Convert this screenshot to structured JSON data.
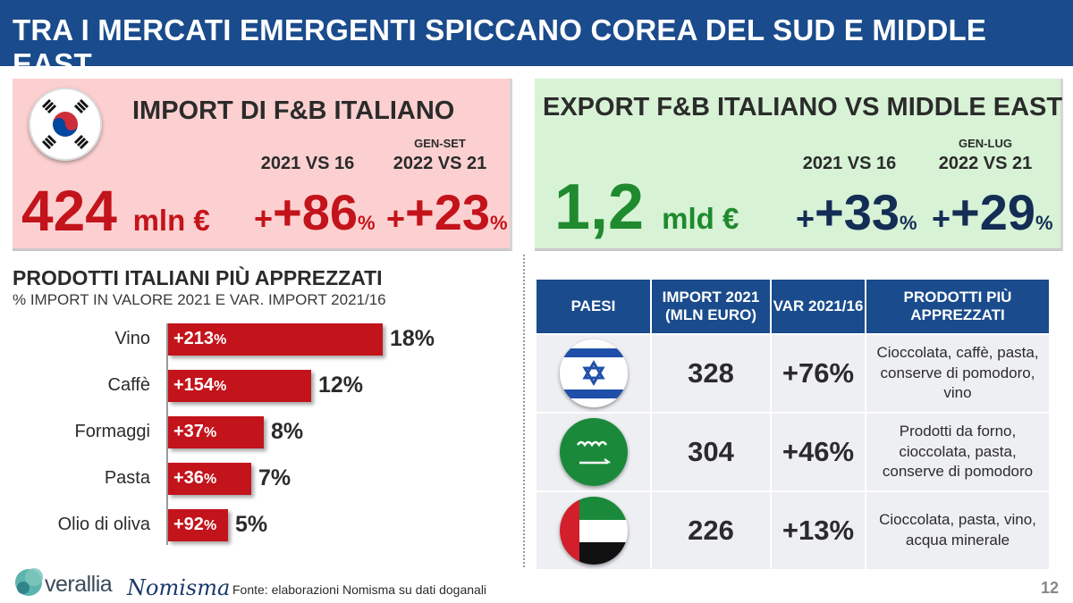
{
  "title": "TRA I MERCATI EMERGENTI SPICCANO COREA DEL SUD E MIDDLE EAST",
  "korea": {
    "heading": "IMPORT DI F&B ITALIANO",
    "value": "424",
    "unit": "mln €",
    "period1": "2021 VS 16",
    "period2_small": "GEN-SET",
    "period2": "2022 VS 21",
    "change1": "+86",
    "change2": "+23",
    "pct": "%"
  },
  "me": {
    "heading": "EXPORT F&B ITALIANO VS MIDDLE EAST",
    "value": "1,2",
    "unit": "mld €",
    "period1": "2021 VS 16",
    "period2_small": "GEN-LUG",
    "period2": "2022 VS 21",
    "change1": "+33",
    "change2": "+29",
    "pct": "%"
  },
  "products": {
    "title": "PRODOTTI ITALIANI PIÙ APPREZZATI",
    "subtitle": "% IMPORT IN VALORE 2021  E VAR. IMPORT 2021/16"
  },
  "chart_data": {
    "type": "bar",
    "orientation": "horizontal",
    "title": "PRODOTTI ITALIANI PIÙ APPREZZATI",
    "subtitle": "% IMPORT IN VALORE 2021  E VAR. IMPORT 2021/16",
    "categories": [
      "Vino",
      "Caffè",
      "Formaggi",
      "Pasta",
      "Olio di oliva"
    ],
    "values": [
      18,
      12,
      8,
      7,
      5
    ],
    "value_labels": [
      "18%",
      "12%",
      "8%",
      "7%",
      "5%"
    ],
    "changes": [
      "+213",
      "+154",
      "+37",
      "+36",
      "+92"
    ],
    "change_unit": "%",
    "bar_color": "#c3131b",
    "xlim": [
      0,
      18
    ]
  },
  "table": {
    "headers": [
      "PAESI",
      "IMPORT 2021 (MLN EURO)",
      "VAR 2021/16",
      "PRODOTTI PIÙ APPREZZATI"
    ],
    "rows": [
      {
        "flag": "israel-flag-icon",
        "import": "328",
        "var": "+76%",
        "products": "Cioccolata, caffè, pasta, conserve di pomodoro, vino"
      },
      {
        "flag": "saudi-flag-icon",
        "import": "304",
        "var": "+46%",
        "products": "Prodotti da forno, cioccolata, pasta, conserve di pomodoro"
      },
      {
        "flag": "uae-flag-icon",
        "import": "226",
        "var": "+13%",
        "products": "Cioccolata, pasta, vino, acqua minerale"
      }
    ]
  },
  "footer": {
    "source": "Fonte: elaborazioni Nomisma su dati doganali",
    "page": "12",
    "logo1": "verallia",
    "logo2": "Nomisma"
  },
  "colors": {
    "navy": "#1a4b8c",
    "red": "#c3131b",
    "green": "#1f8a2e",
    "pink_bg": "#fcd0d0",
    "green_bg": "#d7f2d5"
  }
}
